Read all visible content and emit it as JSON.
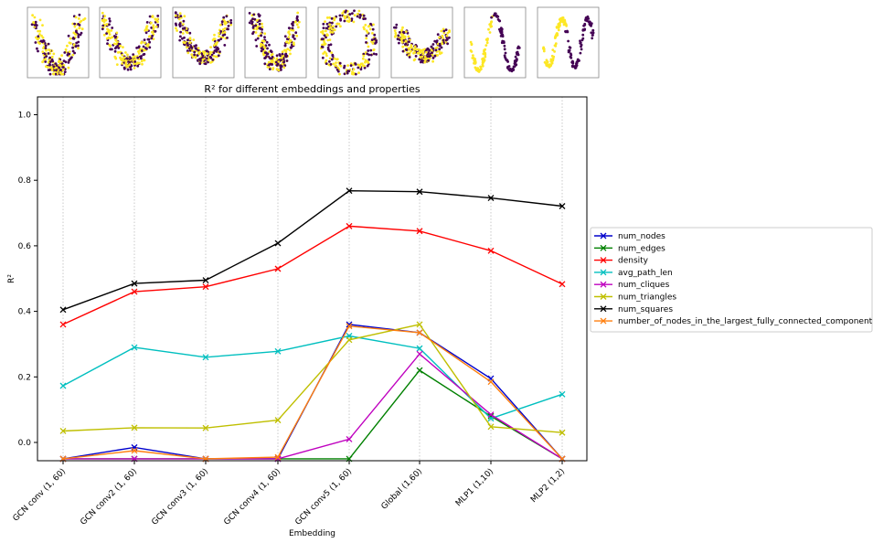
{
  "chart_data": {
    "type": "line",
    "title": "R² for different embeddings and properties",
    "xlabel": "Embedding",
    "ylabel": "R²",
    "categories": [
      "GCN conv (1, 60)",
      "GCN conv2 (1, 60)",
      "GCN conv3 (1, 60)",
      "GCN conv4 (1, 60)",
      "GCN conv5 (1, 60)",
      "Global (1,60)",
      "MLP1 (1,10)",
      "MLP2 (1,2)"
    ],
    "yticks": [
      "0.0",
      "0.2",
      "0.4",
      "0.6",
      "0.8",
      "1.0"
    ],
    "ylim": [
      -0.06,
      1.05
    ],
    "grid": "vertical dotted",
    "legend_position": "right, outside plot",
    "marker": "x",
    "series": [
      {
        "name": "num_nodes",
        "color": "#0000cc",
        "values": [
          -0.05,
          -0.015,
          -0.05,
          -0.05,
          0.36,
          0.335,
          0.195,
          -0.05
        ]
      },
      {
        "name": "num_edges",
        "color": "#008000",
        "values": [
          -0.05,
          -0.05,
          -0.05,
          -0.05,
          -0.05,
          0.22,
          0.08,
          -0.05
        ]
      },
      {
        "name": "density",
        "color": "#ff0000",
        "values": [
          0.36,
          0.46,
          0.475,
          0.53,
          0.66,
          0.645,
          0.585,
          0.483
        ]
      },
      {
        "name": "avg_path_len",
        "color": "#00bfbf",
        "values": [
          0.173,
          0.29,
          0.26,
          0.278,
          0.325,
          0.287,
          0.073,
          0.147
        ]
      },
      {
        "name": "num_cliques",
        "color": "#bf00bf",
        "values": [
          -0.05,
          -0.05,
          -0.05,
          -0.05,
          0.01,
          0.27,
          0.085,
          -0.05
        ]
      },
      {
        "name": "num_triangles",
        "color": "#bfbf00",
        "values": [
          0.035,
          0.045,
          0.044,
          0.068,
          0.313,
          0.36,
          0.048,
          0.03
        ]
      },
      {
        "name": "num_squares",
        "color": "#000000",
        "values": [
          0.405,
          0.485,
          0.495,
          0.608,
          0.768,
          0.765,
          0.746,
          0.721
        ]
      },
      {
        "name": "number_of_nodes_in_the_largest_fully_connected_component",
        "color": "#ff7f0e",
        "values": [
          -0.05,
          -0.025,
          -0.05,
          -0.045,
          0.355,
          0.335,
          0.185,
          -0.05
        ]
      }
    ]
  },
  "thumbnails": {
    "count": 8,
    "colormap": [
      "#fde725",
      "#440154"
    ]
  }
}
